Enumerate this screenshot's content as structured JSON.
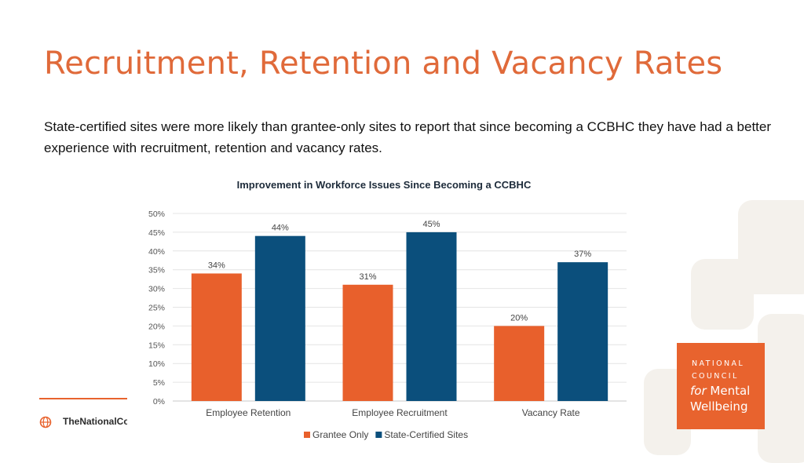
{
  "slide": {
    "title": "Recruitment, Retention and Vacancy Rates",
    "subtitle": "State-certified sites were more likely than grantee-only sites to report that since becoming a CCBHC they have had a better experience with recruitment, retention and vacancy rates."
  },
  "footer": {
    "org_text": "TheNationalCouncil.org"
  },
  "logo": {
    "line1": "NATIONAL",
    "line2": "COUNCIL",
    "line3_for": "for",
    "line3_rest": " Mental",
    "line4": "Wellbeing",
    "color": "#e8632e"
  },
  "chart_data": {
    "type": "bar",
    "title": "Improvement in Workforce Issues Since Becoming a CCBHC",
    "categories": [
      "Employee Retention",
      "Employee Recruitment",
      "Vacancy Rate"
    ],
    "series": [
      {
        "name": "Grantee Only",
        "values": [
          34,
          31,
          20
        ],
        "labels": [
          "34%",
          "31%",
          "20%"
        ],
        "color": "#e8602c"
      },
      {
        "name": "State-Certified Sites",
        "values": [
          44,
          45,
          37
        ],
        "labels": [
          "44%",
          "45%",
          "37%"
        ],
        "color": "#0b4f7c"
      }
    ],
    "ylim": [
      0,
      50
    ],
    "yticks": [
      0,
      5,
      10,
      15,
      20,
      25,
      30,
      35,
      40,
      45,
      50
    ],
    "ytick_labels": [
      "0%",
      "5%",
      "10%",
      "15%",
      "20%",
      "25%",
      "30%",
      "35%",
      "40%",
      "45%",
      "50%"
    ],
    "grid": true,
    "legend": "bottom"
  }
}
